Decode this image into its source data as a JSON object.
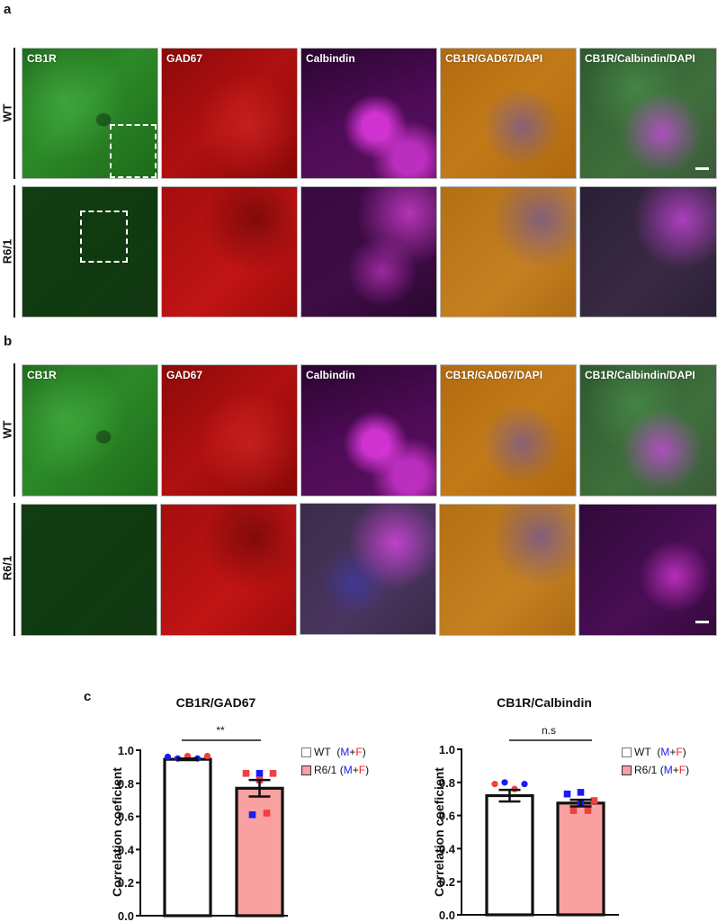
{
  "figure": {
    "panels": {
      "a": {
        "letter": "a"
      },
      "b": {
        "letter": "b"
      },
      "c": {
        "letter": "c"
      }
    },
    "row_labels": [
      "WT",
      "R6/1"
    ],
    "channel_labels": [
      "CB1R",
      "GAD67",
      "Calbindin",
      "CB1R/GAD67/DAPI",
      "CB1R/Calbindin/DAPI"
    ]
  },
  "legend": {
    "items": [
      {
        "group": "WT",
        "label": "WT",
        "fill": "#ffffff",
        "suffix_open": "(",
        "m": "M",
        "plus": "+",
        "f": "F",
        "suffix_close": ")"
      },
      {
        "group": "R6/1",
        "label": "R6/1",
        "fill": "#f9a0a0",
        "suffix_open": "(",
        "m": "M",
        "plus": "+",
        "f": "F",
        "suffix_close": ")"
      }
    ]
  },
  "colors": {
    "male": "#1a1aff",
    "female": "#f04040",
    "wt_bar": "#ffffff",
    "r61_bar": "#f9a0a0"
  },
  "chart_data": [
    {
      "type": "bar",
      "title": "CB1R/GAD67",
      "xlabel": "",
      "ylabel": "Correlation coeficient",
      "ylim": [
        0.0,
        1.0
      ],
      "yticks": [
        "0.0",
        "0.2",
        "0.4",
        "0.6",
        "0.8",
        "1.0"
      ],
      "categories": [
        "WT (M+F)",
        "R6/1 (M+F)"
      ],
      "values": [
        0.945,
        0.77
      ],
      "sem": [
        0.005,
        0.05
      ],
      "significance": "**",
      "points": [
        [
          {
            "v": 0.96,
            "sex": "M",
            "shape": "circle"
          },
          {
            "v": 0.95,
            "sex": "M",
            "shape": "circle"
          },
          {
            "v": 0.965,
            "sex": "F",
            "shape": "circle"
          },
          {
            "v": 0.95,
            "sex": "M",
            "shape": "circle"
          },
          {
            "v": 0.965,
            "sex": "F",
            "shape": "circle"
          }
        ],
        [
          {
            "v": 0.86,
            "sex": "F",
            "shape": "square"
          },
          {
            "v": 0.86,
            "sex": "M",
            "shape": "square"
          },
          {
            "v": 0.82,
            "sex": "F",
            "shape": "square"
          },
          {
            "v": 0.86,
            "sex": "F",
            "shape": "square"
          },
          {
            "v": 0.61,
            "sex": "M",
            "shape": "square"
          },
          {
            "v": 0.62,
            "sex": "F",
            "shape": "square"
          }
        ]
      ],
      "grid": false,
      "legend_position": "right"
    },
    {
      "type": "bar",
      "title": "CB1R/Calbindin",
      "xlabel": "",
      "ylabel": "Correlation coeficient",
      "ylim": [
        0.0,
        1.0
      ],
      "yticks": [
        "0.0",
        "0.2",
        "0.4",
        "0.6",
        "0.8",
        "1.0"
      ],
      "categories": [
        "WT (M+F)",
        "R6/1 (M+F)"
      ],
      "values": [
        0.72,
        0.675
      ],
      "sem": [
        0.035,
        0.02
      ],
      "significance": "n.s",
      "points": [
        [
          {
            "v": 0.79,
            "sex": "F",
            "shape": "circle"
          },
          {
            "v": 0.8,
            "sex": "M",
            "shape": "circle"
          },
          {
            "v": 0.76,
            "sex": "F",
            "shape": "circle"
          },
          {
            "v": 0.79,
            "sex": "M",
            "shape": "circle"
          }
        ],
        [
          {
            "v": 0.73,
            "sex": "M",
            "shape": "square"
          },
          {
            "v": 0.74,
            "sex": "M",
            "shape": "square"
          },
          {
            "v": 0.68,
            "sex": "M",
            "shape": "square"
          },
          {
            "v": 0.69,
            "sex": "F",
            "shape": "square"
          },
          {
            "v": 0.63,
            "sex": "F",
            "shape": "square"
          },
          {
            "v": 0.63,
            "sex": "F",
            "shape": "square"
          }
        ]
      ],
      "grid": false,
      "legend_position": "right"
    }
  ]
}
